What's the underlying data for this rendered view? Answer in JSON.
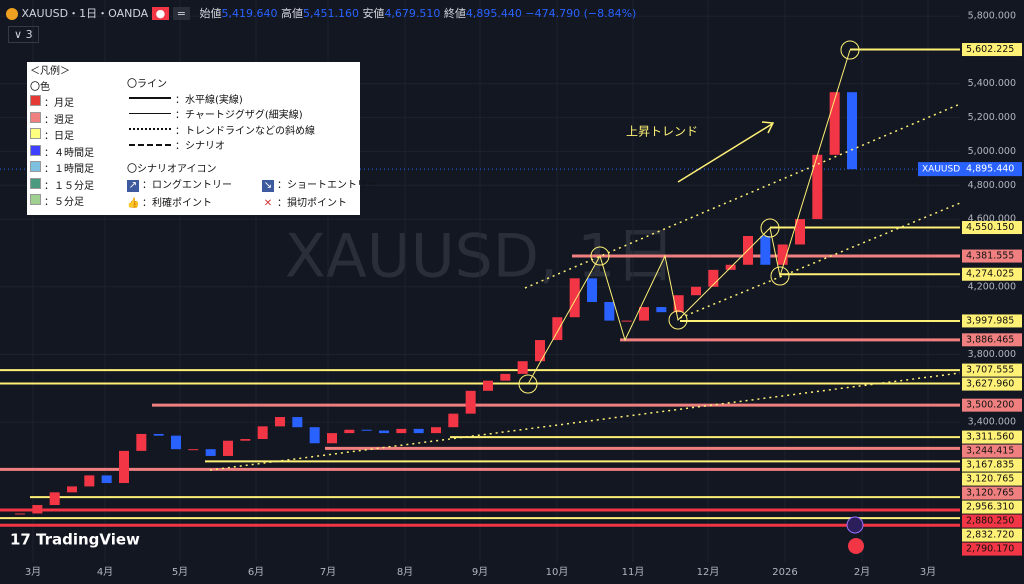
{
  "header": {
    "symbol": "XAUUSD・1日・OANDA",
    "open_label": "始値",
    "open": "5,419.640",
    "high_label": "高値",
    "high": "5,451.160",
    "low_label": "安値",
    "low": "4,679.510",
    "close_label": "終値",
    "close": "4,895.440",
    "change": "−474.790 (−8.84%)",
    "indicators": "3"
  },
  "legend": {
    "title": "＜凡例＞",
    "color_heading": "〇色",
    "colors": [
      {
        "label": "：月足",
        "color": "#e53935"
      },
      {
        "label": "：週足",
        "color": "#f08080"
      },
      {
        "label": "：日足",
        "color": "#ffff80"
      },
      {
        "label": "：４時間足",
        "color": "#4040ff"
      },
      {
        "label": "：１時間足",
        "color": "#7ec0e0"
      },
      {
        "label": "：１５分足",
        "color": "#4a9a80"
      },
      {
        "label": "：５分足",
        "color": "#a0d090"
      }
    ],
    "line_heading": "〇ライン",
    "lines": [
      "：水平線(実線)",
      "：チャートジグザグ(細実線)",
      "：トレンドラインなどの斜め線",
      "：シナリオ"
    ],
    "icon_heading": "〇シナリオアイコン",
    "icons": [
      "：ロングエントリー",
      "：ショートエントリー",
      "：利確ポイント",
      "：損切ポイント"
    ]
  },
  "annotation": "上昇トレンド",
  "watermark": "XAUUSD, 1日",
  "brand": "TradingView",
  "chart_data": {
    "type": "candlestick",
    "closes": [
      2860,
      2910,
      2985,
      3020,
      3085,
      3040,
      3230,
      3330,
      3320,
      3240,
      3240,
      3200,
      3290,
      3300,
      3375,
      3430,
      3370,
      3275,
      3335,
      3355,
      3350,
      3335,
      3360,
      3335,
      3370,
      3450,
      3585,
      3645,
      3685,
      3760,
      3885,
      4020,
      4250,
      4110,
      4000,
      4000,
      4080,
      4050,
      4150,
      4200,
      4300,
      4330,
      4500,
      4330,
      4450,
      4600,
      4980,
      5350,
      4895
    ],
    "up_color": "#f23645",
    "down_color": "#2962ff",
    "ylim": [
      2585,
      5895
    ],
    "yticks": [
      {
        "value": 5800,
        "label": "5,800.000"
      },
      {
        "value": 5400,
        "label": "5,400.000"
      },
      {
        "value": 5200,
        "label": "5,200.000"
      },
      {
        "value": 5000,
        "label": "5,000.000"
      },
      {
        "value": 4800,
        "label": "4,800.000"
      },
      {
        "value": 4600,
        "label": "4,600.000"
      },
      {
        "value": 4200,
        "label": "4,200.000"
      },
      {
        "value": 3800,
        "label": "3,800.000"
      },
      {
        "value": 3400,
        "label": "3,400.000"
      }
    ],
    "xlabels": [
      "3月",
      "4月",
      "5月",
      "6月",
      "7月",
      "8月",
      "9月",
      "10月",
      "11月",
      "12月",
      "2026",
      "2月",
      "3月"
    ],
    "current": {
      "name": "XAUUSD",
      "value": 4895.44,
      "label": "4,895.440",
      "color": "#2962ff"
    },
    "levels": [
      {
        "value": 5602.225,
        "label": "5,602.225",
        "color": "#fff176"
      },
      {
        "value": 4550.15,
        "label": "4,550.150",
        "color": "#fff176"
      },
      {
        "value": 4381.555,
        "label": "4,381.555",
        "color": "#f08080"
      },
      {
        "value": 4274.025,
        "label": "4,274.025",
        "color": "#fff176"
      },
      {
        "value": 3997.985,
        "label": "3,997.985",
        "color": "#fff176"
      },
      {
        "value": 3886.465,
        "label": "3,886.465",
        "color": "#f08080"
      },
      {
        "value": 3707.555,
        "label": "3,707.555",
        "color": "#fff176"
      },
      {
        "value": 3627.96,
        "label": "3,627.960",
        "color": "#fff176"
      },
      {
        "value": 3500.2,
        "label": "3,500.200",
        "color": "#f08080"
      },
      {
        "value": 3311.56,
        "label": "3,311.560",
        "color": "#fff176"
      },
      {
        "value": 3244.415,
        "label": "3,244.415",
        "color": "#f08080"
      },
      {
        "value": 3167.835,
        "label": "3,167.835",
        "color": "#fff176"
      },
      {
        "value": 3120.765,
        "label": "3,120.765",
        "color": "#fff176"
      },
      {
        "value": 3120.765,
        "label": "3,120.765",
        "color": "#f08080"
      },
      {
        "value": 2956.31,
        "label": "2,956.310",
        "color": "#fff176"
      },
      {
        "value": 2880.25,
        "label": "2,880.250",
        "color": "#f23645"
      },
      {
        "value": 2832.72,
        "label": "2,832.720",
        "color": "#fff176"
      },
      {
        "value": 2790.17,
        "label": "2,790.170",
        "color": "#f23645"
      }
    ]
  }
}
